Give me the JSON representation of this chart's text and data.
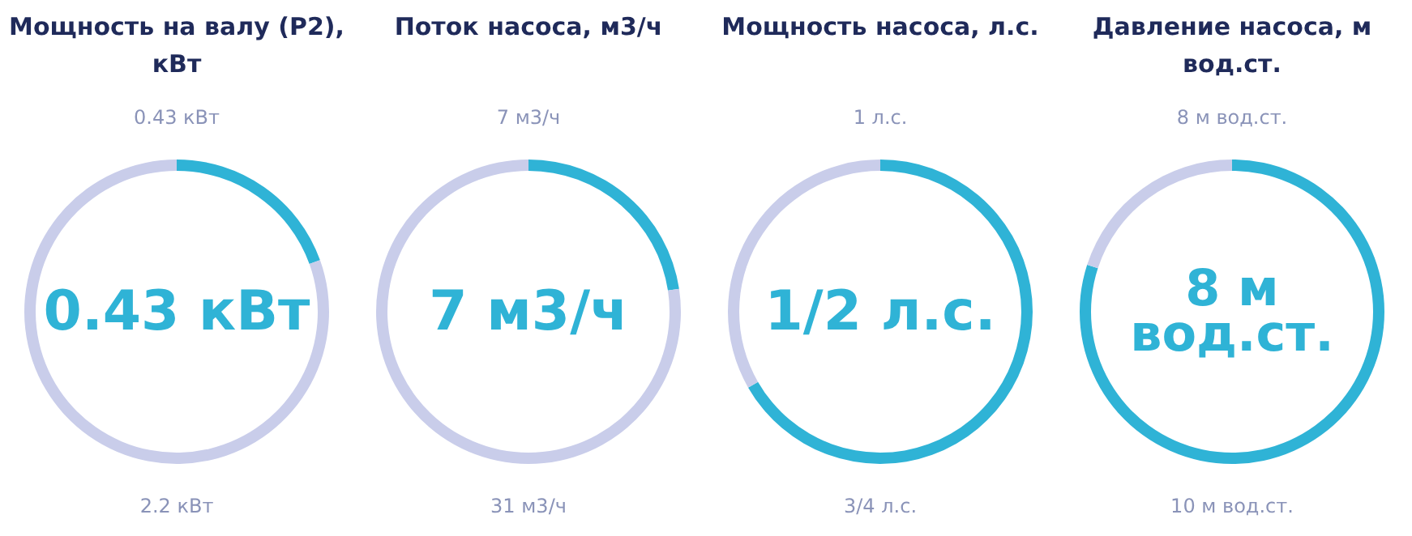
{
  "chart_data": [
    {
      "type": "donut",
      "title": "Мощность на валу (P2), кВт",
      "categories": [
        null,
        null
      ],
      "values": [
        19.5,
        80.5
      ],
      "colors": [
        "#2fb3d6",
        "#c9cdea"
      ],
      "annotations": [
        "0.43 кВт",
        "0.43 кВт",
        "2.2 кВт"
      ]
    },
    {
      "type": "donut",
      "title": "Поток насоса, м3/ч",
      "categories": [
        null,
        null
      ],
      "values": [
        22.6,
        77.4
      ],
      "colors": [
        "#2fb3d6",
        "#c9cdea"
      ],
      "annotations": [
        "7 м3/ч",
        "7 м3/ч",
        "31 м3/ч"
      ]
    },
    {
      "type": "donut",
      "title": "Мощность насоса, л.с.",
      "categories": [
        null,
        null
      ],
      "values": [
        66.7,
        33.3
      ],
      "colors": [
        "#2fb3d6",
        "#c9cdea"
      ],
      "annotations": [
        "1 л.с.",
        "1/2 л.с.",
        "3/4 л.с."
      ]
    },
    {
      "type": "donut",
      "title": "Давление насоса, м вод.ст.",
      "categories": [
        null,
        null
      ],
      "values": [
        80,
        20
      ],
      "colors": [
        "#2fb3d6",
        "#c9cdea"
      ],
      "annotations": [
        "8 м вод.ст.",
        "8 м вод.ст.",
        "10 м вод.ст."
      ]
    }
  ]
}
